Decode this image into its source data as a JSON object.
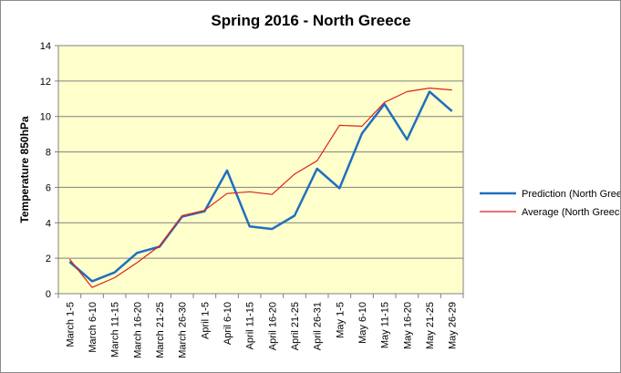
{
  "chart_data": {
    "type": "line",
    "title": "Spring 2016 - North Greece",
    "xlabel": "",
    "ylabel": "Temperature 850hPa",
    "ylim": [
      0,
      14
    ],
    "yticks": [
      0,
      2,
      4,
      6,
      8,
      10,
      12,
      14
    ],
    "grid": "horizontal",
    "legend_position": "right",
    "plot_background": "#ffffcc",
    "categories": [
      "March 1-5",
      "March 6-10",
      "March 11-15",
      "March 16-20",
      "March 21-25",
      "March 26-30",
      "April 1-5",
      "April 6-10",
      "April 11-15",
      "April 16-20",
      "April 21-25",
      "April 26-31",
      "May 1-5",
      "May 6-10",
      "May 11-15",
      "May 16-20",
      "May 21-25",
      "May 26-29"
    ],
    "series": [
      {
        "name": "Prediction (North Greece)",
        "color": "#1f6fbf",
        "values": [
          1.8,
          0.7,
          1.2,
          2.3,
          2.65,
          4.35,
          4.65,
          6.95,
          3.8,
          3.65,
          4.4,
          7.05,
          5.95,
          9.05,
          10.7,
          8.7,
          11.4,
          10.3
        ]
      },
      {
        "name": "Average (North Greece)",
        "color": "#e0201b",
        "values": [
          1.95,
          0.35,
          0.9,
          1.75,
          2.7,
          4.4,
          4.7,
          5.65,
          5.75,
          5.6,
          6.75,
          7.5,
          9.5,
          9.45,
          10.8,
          11.4,
          11.6,
          11.5
        ]
      }
    ]
  }
}
